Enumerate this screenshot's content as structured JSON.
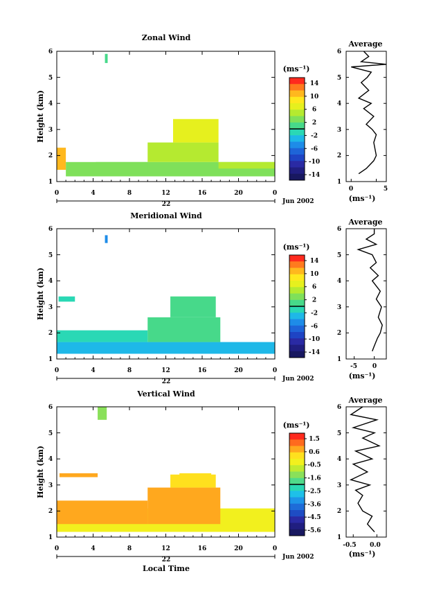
{
  "panels": [
    {
      "title": "Zonal Wind",
      "ylabel": "Height (km)",
      "units": "(ms⁻¹)",
      "x_ticks": [
        "0",
        "4",
        "8",
        "12",
        "16",
        "20",
        "0"
      ],
      "y_ticks": [
        "1",
        "2",
        "3",
        "4",
        "5",
        "6"
      ],
      "date_day": "22",
      "date_month_year": "Jun 2002",
      "cbar_labels": [
        "14",
        "10",
        "6",
        "2",
        "-2",
        "-6",
        "-10",
        "-14"
      ],
      "cbar_colors": [
        "#ff2a1e",
        "#ff7a1e",
        "#ffb81e",
        "#ffe81e",
        "#e6f01e",
        "#b5ea30",
        "#7fe05a",
        "#47d98a",
        "#2ad8b5",
        "#1eb8e8",
        "#1e8ce8",
        "#1e64d8",
        "#1e44c4",
        "#2a2aa4",
        "#201e80",
        "#181860"
      ],
      "avg_title": "Average",
      "avg_xticks": [
        "0",
        "5"
      ],
      "avg_xlabel": "(ms⁻¹)",
      "avg_xlim": [
        -1,
        7
      ]
    },
    {
      "title": "Meridional Wind",
      "ylabel": "Height (km)",
      "units": "(ms⁻¹)",
      "x_ticks": [
        "0",
        "4",
        "8",
        "12",
        "16",
        "20",
        "0"
      ],
      "y_ticks": [
        "1",
        "2",
        "3",
        "4",
        "5",
        "6"
      ],
      "date_day": "22",
      "date_month_year": "Jun 2002",
      "cbar_labels": [
        "14",
        "10",
        "6",
        "2",
        "-2",
        "-6",
        "-10",
        "-14"
      ],
      "cbar_colors": [
        "#ff2a1e",
        "#ff7a1e",
        "#ffb81e",
        "#ffe81e",
        "#e6f01e",
        "#b5ea30",
        "#7fe05a",
        "#47d98a",
        "#2ad8b5",
        "#1eb8e8",
        "#1e8ce8",
        "#1e64d8",
        "#1e44c4",
        "#2a2aa4",
        "#201e80",
        "#181860"
      ],
      "avg_title": "Average",
      "avg_xticks": [
        "-5",
        "0"
      ],
      "avg_xlabel": "(ms⁻¹)",
      "avg_xlim": [
        -7,
        3
      ]
    },
    {
      "title": "Vertical Wind",
      "ylabel": "Height (km)",
      "units": "(ms⁻¹)",
      "x_ticks": [
        "0",
        "4",
        "8",
        "12",
        "16",
        "20",
        "0"
      ],
      "y_ticks": [
        "1",
        "2",
        "3",
        "4",
        "5",
        "6"
      ],
      "date_day": "22",
      "date_month_year": "Jun 2002",
      "cbar_labels": [
        "1.5",
        "0.6",
        "-0.5",
        "-1.6",
        "-2.5",
        "-3.6",
        "-4.5",
        "-5.6"
      ],
      "cbar_colors": [
        "#ff2a1e",
        "#ff6a1e",
        "#ffa81e",
        "#ffe01e",
        "#f2f01e",
        "#c0ea30",
        "#8ae05a",
        "#50da8a",
        "#2ad8b5",
        "#1ec0e8",
        "#1e94e8",
        "#1e6cd8",
        "#1e4cc4",
        "#2a2aa4",
        "#201e80",
        "#181860"
      ],
      "avg_title": "Average",
      "avg_xticks": [
        "-0.5",
        "0.0"
      ],
      "avg_xlabel": "(ms⁻¹)",
      "avg_xlim": [
        -0.65,
        0.2
      ]
    }
  ],
  "xlabel": "Local Time",
  "chart_data": [
    {
      "type": "heatmap",
      "title": "Zonal Wind",
      "xlabel": "",
      "ylabel": "Height (km)",
      "xlim": [
        0,
        24
      ],
      "ylim": [
        1,
        6
      ],
      "colorbar_range": [
        -14,
        14
      ],
      "patches": [
        {
          "x": [
            0,
            1
          ],
          "y": [
            1.45,
            2.3
          ],
          "value": 10
        },
        {
          "x": [
            1,
            24
          ],
          "y": [
            1.2,
            1.75
          ],
          "value": 3
        },
        {
          "x": [
            4.3,
            10
          ],
          "y": [
            1.3,
            1.75
          ],
          "value": 2
        },
        {
          "x": [
            10,
            17.8
          ],
          "y": [
            1.75,
            2.5
          ],
          "value": 4
        },
        {
          "x": [
            12.8,
            17.8
          ],
          "y": [
            2.5,
            3.4
          ],
          "value": 7
        },
        {
          "x": [
            17.8,
            24
          ],
          "y": [
            1.5,
            1.75
          ],
          "value": 4
        },
        {
          "x": [
            5.3,
            5.6
          ],
          "y": [
            5.55,
            5.9
          ],
          "value": 1
        }
      ],
      "profile": {
        "heights": [
          1.3,
          1.5,
          1.8,
          2.0,
          2.2,
          2.5,
          2.8,
          3.0,
          3.2,
          3.5,
          3.8,
          4.0,
          4.2,
          4.5,
          4.8,
          5.0,
          5.2,
          5.4,
          5.5,
          5.6,
          5.8,
          6.0
        ],
        "values": [
          1.5,
          3.0,
          4.5,
          5.0,
          4.8,
          4.5,
          5.0,
          4.2,
          3.0,
          4.5,
          2.5,
          4.0,
          1.5,
          3.5,
          2.0,
          3.2,
          4.0,
          0.0,
          7.0,
          2.0,
          3.5,
          2.5
        ]
      }
    },
    {
      "type": "heatmap",
      "title": "Meridional Wind",
      "xlabel": "",
      "ylabel": "Height (km)",
      "xlim": [
        0,
        24
      ],
      "ylim": [
        1,
        6
      ],
      "colorbar_range": [
        -14,
        14
      ],
      "patches": [
        {
          "x": [
            0,
            24
          ],
          "y": [
            1.2,
            1.65
          ],
          "value": -2
        },
        {
          "x": [
            0,
            10
          ],
          "y": [
            1.65,
            2.1
          ],
          "value": 0
        },
        {
          "x": [
            10,
            18
          ],
          "y": [
            1.65,
            2.6
          ],
          "value": 1
        },
        {
          "x": [
            12.5,
            17.5
          ],
          "y": [
            2.6,
            3.4
          ],
          "value": 1
        },
        {
          "x": [
            0.2,
            2
          ],
          "y": [
            3.2,
            3.4
          ],
          "value": 0
        },
        {
          "x": [
            5.3,
            5.6
          ],
          "y": [
            5.45,
            5.75
          ],
          "value": -5
        }
      ],
      "profile": {
        "heights": [
          1.3,
          1.5,
          1.8,
          2.0,
          2.3,
          2.6,
          3.0,
          3.3,
          3.6,
          4.0,
          4.2,
          4.5,
          4.7,
          5.0,
          5.2,
          5.4,
          5.6,
          5.8,
          6.0
        ],
        "values": [
          -0.5,
          0.0,
          0.8,
          1.5,
          2.0,
          1.0,
          1.8,
          0.5,
          1.5,
          -0.5,
          1.0,
          -1.0,
          0.5,
          -0.5,
          -4.0,
          0.5,
          -2.0,
          0.0,
          0.0
        ]
      }
    },
    {
      "type": "heatmap",
      "title": "Vertical Wind",
      "xlabel": "Local Time",
      "ylabel": "Height (km)",
      "xlim": [
        0,
        24
      ],
      "ylim": [
        1,
        6
      ],
      "colorbar_range": [
        -5.6,
        1.5
      ],
      "patches": [
        {
          "x": [
            0,
            24
          ],
          "y": [
            1.2,
            2.1
          ],
          "value": -0.3
        },
        {
          "x": [
            0,
            10
          ],
          "y": [
            1.5,
            2.4
          ],
          "value": 0.4
        },
        {
          "x": [
            10,
            18
          ],
          "y": [
            1.5,
            2.9
          ],
          "value": 0.6
        },
        {
          "x": [
            12.5,
            17.5
          ],
          "y": [
            2.9,
            3.4
          ],
          "value": 0.1
        },
        {
          "x": [
            0.3,
            4.5
          ],
          "y": [
            3.3,
            3.45
          ],
          "value": 0.3
        },
        {
          "x": [
            13.5,
            17
          ],
          "y": [
            3.3,
            3.45
          ],
          "value": 0.1
        },
        {
          "x": [
            4.5,
            5.5
          ],
          "y": [
            5.5,
            6.0
          ],
          "value": -1.6
        }
      ],
      "profile": {
        "heights": [
          1.2,
          1.5,
          1.8,
          2.0,
          2.3,
          2.6,
          2.8,
          3.0,
          3.2,
          3.5,
          3.8,
          4.0,
          4.3,
          4.5,
          4.8,
          5.0,
          5.2,
          5.5,
          5.7,
          6.0
        ],
        "values": [
          -0.05,
          -0.2,
          -0.1,
          -0.3,
          -0.4,
          -0.3,
          -0.45,
          -0.15,
          -0.55,
          -0.2,
          -0.5,
          -0.1,
          -0.45,
          0.05,
          -0.3,
          -0.05,
          -0.5,
          0.0,
          -0.55,
          -0.3
        ]
      }
    }
  ]
}
